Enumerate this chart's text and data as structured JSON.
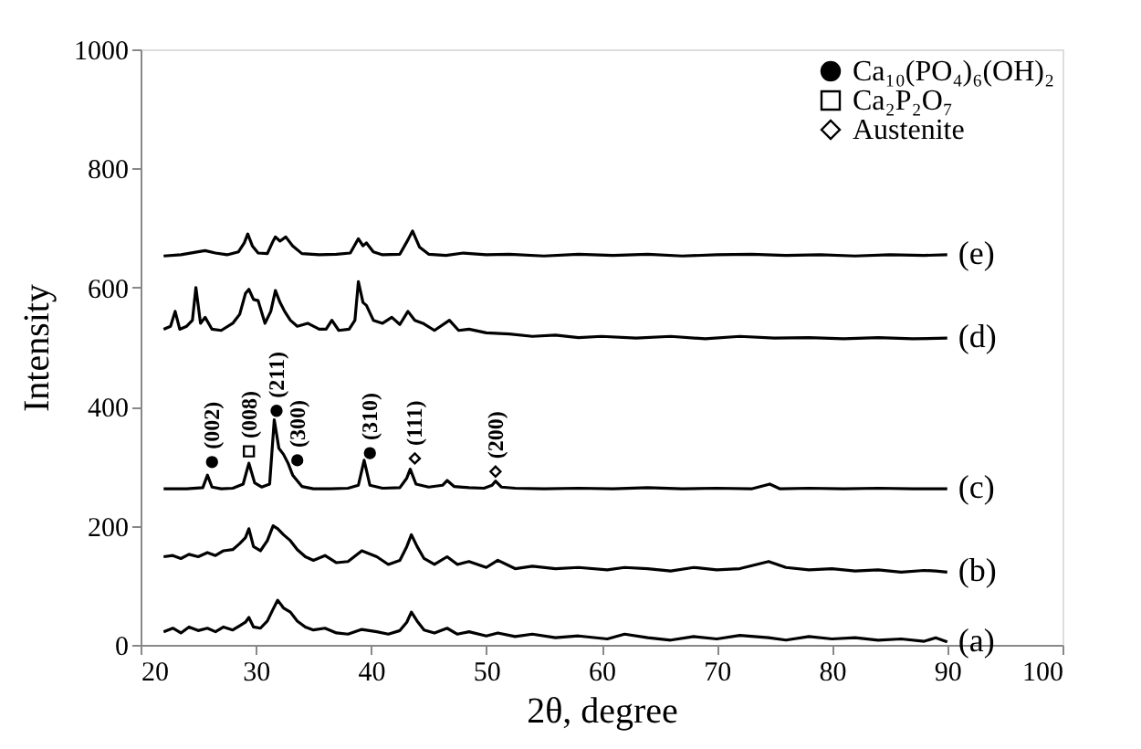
{
  "chart_data": {
    "type": "line",
    "xlabel": "2θ, degree",
    "ylabel": "Intensity",
    "xlim": [
      20,
      100
    ],
    "xticks": [
      20,
      30,
      40,
      50,
      60,
      70,
      80,
      90,
      100
    ],
    "ylim": [
      0,
      1000
    ],
    "yticks": [
      0,
      200,
      400,
      600,
      800,
      {
        "value": 1000,
        "label": "1000"
      }
    ],
    "grid": false,
    "legend": "top right",
    "line_style": "solid",
    "series": [
      {
        "name": "(a)",
        "color": "#000000",
        "x": [
          22,
          22.8,
          23.5,
          24.2,
          25,
          25.8,
          26.5,
          27.2,
          28,
          28.6,
          29.1,
          29.4,
          29.8,
          30.4,
          31,
          31.5,
          31.9,
          32.4,
          33,
          33.6,
          34.3,
          35,
          36,
          37,
          38,
          39.2,
          40.5,
          41.5,
          42.5,
          43.1,
          43.5,
          44,
          44.6,
          45.5,
          46.6,
          47.5,
          48.5,
          50,
          51,
          52.5,
          54,
          56,
          58,
          60.5,
          62,
          64,
          66,
          68,
          70,
          72,
          74.5,
          76,
          78,
          80,
          82,
          84,
          86,
          88,
          89,
          90
        ],
        "values": [
          22,
          28,
          20,
          30,
          24,
          28,
          22,
          30,
          25,
          32,
          38,
          46,
          30,
          28,
          40,
          60,
          75,
          62,
          55,
          40,
          30,
          25,
          28,
          20,
          18,
          26,
          22,
          18,
          24,
          38,
          55,
          40,
          25,
          20,
          28,
          18,
          22,
          15,
          20,
          14,
          18,
          12,
          15,
          10,
          18,
          12,
          8,
          14,
          10,
          16,
          12,
          8,
          14,
          10,
          12,
          8,
          10,
          6,
          12,
          5
        ]
      },
      {
        "name": "(b)",
        "color": "#000000",
        "x": [
          22,
          22.8,
          23.5,
          24.2,
          25,
          25.8,
          26.5,
          27.2,
          28,
          28.6,
          29.1,
          29.4,
          29.8,
          30.4,
          31,
          31.5,
          31.9,
          32.4,
          33,
          33.6,
          34.3,
          35,
          36,
          37,
          38,
          39.2,
          40.5,
          41.5,
          42.5,
          43.1,
          43.5,
          44,
          44.6,
          45.5,
          46.6,
          47.5,
          48.5,
          50,
          51,
          52.5,
          54,
          56,
          58,
          60.5,
          62,
          64,
          66,
          68,
          70,
          72,
          74.5,
          76,
          78,
          80,
          82,
          84,
          86,
          88,
          89,
          90
        ],
        "values": [
          148,
          150,
          145,
          152,
          148,
          155,
          150,
          158,
          160,
          170,
          180,
          195,
          165,
          158,
          175,
          200,
          195,
          185,
          175,
          160,
          148,
          142,
          150,
          138,
          140,
          158,
          148,
          135,
          142,
          165,
          185,
          165,
          145,
          135,
          148,
          135,
          140,
          130,
          142,
          128,
          132,
          128,
          130,
          126,
          130,
          128,
          124,
          130,
          126,
          128,
          140,
          130,
          126,
          128,
          124,
          126,
          122,
          125,
          124,
          122
        ]
      },
      {
        "name": "(c)",
        "color": "#000000",
        "x": [
          22,
          24,
          25.4,
          25.8,
          26.2,
          27,
          28,
          28.9,
          29.4,
          29.9,
          30.5,
          31.2,
          31.6,
          32,
          32.4,
          32.8,
          33.2,
          34,
          35,
          36.5,
          38,
          38.9,
          39.4,
          39.9,
          41,
          42.5,
          43.1,
          43.4,
          43.9,
          45,
          46.2,
          46.6,
          47.2,
          48.5,
          49.8,
          50.5,
          50.8,
          51.3,
          52.5,
          55,
          58,
          61,
          64,
          67,
          70,
          73,
          74.6,
          75.5,
          78,
          81,
          84,
          87,
          90
        ],
        "values": [
          262,
          262,
          264,
          285,
          265,
          262,
          263,
          270,
          305,
          272,
          265,
          270,
          378,
          330,
          320,
          305,
          285,
          266,
          262,
          262,
          263,
          268,
          310,
          268,
          263,
          264,
          280,
          295,
          270,
          265,
          268,
          276,
          266,
          264,
          263,
          268,
          275,
          265,
          263,
          262,
          263,
          262,
          264,
          262,
          263,
          262,
          270,
          262,
          263,
          262,
          263,
          262,
          262
        ]
      },
      {
        "name": "(d)",
        "color": "#000000",
        "x": [
          22,
          22.6,
          23,
          23.4,
          24,
          24.5,
          24.8,
          25.2,
          25.6,
          26.2,
          27,
          28,
          28.6,
          29.1,
          29.4,
          29.8,
          30.2,
          30.8,
          31.3,
          31.7,
          32.1,
          32.5,
          33,
          33.6,
          34.5,
          35.5,
          36.1,
          36.6,
          37.2,
          38.1,
          38.6,
          38.9,
          39.3,
          39.6,
          40.2,
          41,
          41.8,
          42.5,
          43.2,
          43.8,
          44.5,
          45.5,
          46.8,
          47.6,
          48.5,
          50,
          52,
          54,
          56,
          58,
          60,
          63,
          66,
          69,
          72,
          75,
          78,
          81,
          84,
          87,
          90
        ],
        "values": [
          530,
          535,
          560,
          530,
          535,
          545,
          600,
          540,
          550,
          530,
          528,
          540,
          555,
          590,
          597,
          580,
          578,
          540,
          560,
          595,
          575,
          560,
          545,
          535,
          540,
          530,
          530,
          545,
          528,
          530,
          545,
          610,
          575,
          570,
          545,
          540,
          550,
          538,
          560,
          545,
          540,
          528,
          545,
          528,
          530,
          524,
          522,
          518,
          520,
          516,
          518,
          515,
          518,
          514,
          518,
          515,
          516,
          514,
          516,
          514,
          515
        ]
      },
      {
        "name": "(e)",
        "color": "#000000",
        "x": [
          22,
          23.5,
          25,
          25.6,
          26.5,
          27.5,
          28.5,
          29,
          29.3,
          29.7,
          30.2,
          31,
          31.5,
          31.7,
          32.1,
          32.6,
          33.2,
          34,
          35.5,
          37,
          38.2,
          38.9,
          39.3,
          39.6,
          40.2,
          41,
          42.5,
          43.2,
          43.6,
          44.2,
          45,
          46.5,
          48,
          50,
          52,
          55,
          58,
          61,
          64,
          67,
          70,
          73,
          76,
          79,
          82,
          85,
          88,
          90
        ],
        "values": [
          653,
          655,
          660,
          662,
          658,
          655,
          660,
          675,
          690,
          670,
          658,
          657,
          678,
          685,
          678,
          685,
          670,
          657,
          655,
          656,
          658,
          682,
          670,
          675,
          660,
          655,
          656,
          680,
          695,
          668,
          656,
          654,
          658,
          655,
          656,
          653,
          656,
          654,
          656,
          653,
          655,
          656,
          654,
          655,
          653,
          655,
          654,
          655
        ]
      },
      {
        "name": "Ca₁₀(PO₄)₆(OH)₂",
        "type": "scatter",
        "marker": "circle",
        "color": "#000000",
        "x": [
          26.2,
          31.8,
          33.6,
          39.9
        ],
        "values": [
          307,
          393,
          310,
          322
        ]
      },
      {
        "name": "Ca₂P₂O₇",
        "type": "scatter",
        "marker": "square",
        "color": "#000000",
        "x": [
          29.4
        ],
        "values": [
          325
        ]
      },
      {
        "name": "Austenite",
        "type": "scatter",
        "marker": "diamond",
        "color": "#000000",
        "x": [
          43.8,
          50.8
        ],
        "values": [
          313,
          291
        ]
      }
    ],
    "annotations": [
      {
        "text": "(002)",
        "x": 26.2,
        "y": 307
      },
      {
        "text": "(008)",
        "x": 29.4,
        "y": 325
      },
      {
        "text": "(211)",
        "x": 31.8,
        "y": 393
      },
      {
        "text": "(300)",
        "x": 33.6,
        "y": 310
      },
      {
        "text": "(310)",
        "x": 39.9,
        "y": 322
      },
      {
        "text": "(111)",
        "x": 43.8,
        "y": 313
      },
      {
        "text": "(200)",
        "x": 50.8,
        "y": 291
      }
    ]
  }
}
